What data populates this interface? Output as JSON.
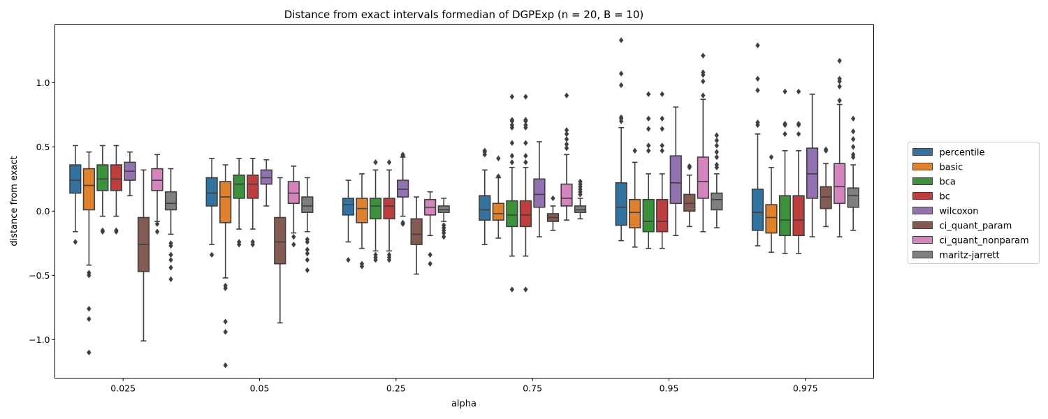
{
  "chart_data": {
    "type": "boxplot",
    "title": "Distance from exact intervals formedian of DGPExp (n = 20, B = 10)",
    "xlabel": "alpha",
    "ylabel": "distance from exact",
    "ylim": [
      -1.3,
      1.45
    ],
    "yticks": [
      -1.0,
      -0.5,
      0.0,
      0.5,
      1.0
    ],
    "ytick_labels": [
      "−1.0",
      "−0.5",
      "0.0",
      "0.5",
      "1.0"
    ],
    "categories": [
      "0.025",
      "0.05",
      "0.25",
      "0.75",
      "0.95",
      "0.975"
    ],
    "legend_position": "right",
    "series": [
      {
        "name": "percentile",
        "color": "#3274a1",
        "boxes": [
          {
            "whislo": -0.16,
            "q1": 0.14,
            "med": 0.24,
            "q3": 0.36,
            "whishi": 0.51,
            "fliers": [
              -0.24
            ]
          },
          {
            "whislo": -0.26,
            "q1": 0.04,
            "med": 0.14,
            "q3": 0.26,
            "whishi": 0.41,
            "fliers": [
              -0.34
            ]
          },
          {
            "whislo": -0.24,
            "q1": -0.03,
            "med": 0.05,
            "q3": 0.1,
            "whishi": 0.24,
            "fliers": [
              -0.38
            ]
          },
          {
            "whislo": -0.26,
            "q1": -0.07,
            "med": 0.01,
            "q3": 0.12,
            "whishi": 0.32,
            "fliers": [
              0.44,
              0.46,
              0.47
            ]
          },
          {
            "whislo": -0.23,
            "q1": -0.11,
            "med": 0.03,
            "q3": 0.22,
            "whishi": 0.65,
            "fliers": [
              0.7,
              0.72,
              0.73,
              0.98,
              1.07,
              1.33
            ]
          },
          {
            "whislo": -0.27,
            "q1": -0.15,
            "med": -0.01,
            "q3": 0.17,
            "whishi": 0.6,
            "fliers": [
              0.67,
              0.69,
              0.94,
              1.03,
              1.29
            ]
          }
        ]
      },
      {
        "name": "basic",
        "color": "#e1812c",
        "boxes": [
          {
            "whislo": -0.42,
            "q1": 0.01,
            "med": 0.2,
            "q3": 0.33,
            "whishi": 0.46,
            "fliers": [
              -0.48,
              -0.5,
              -0.76,
              -0.84,
              -1.1
            ]
          },
          {
            "whislo": -0.52,
            "q1": -0.09,
            "med": 0.11,
            "q3": 0.23,
            "whishi": 0.36,
            "fliers": [
              -0.58,
              -0.6,
              -0.86,
              -0.94,
              -1.2
            ]
          },
          {
            "whislo": -0.29,
            "q1": -0.09,
            "med": 0.02,
            "q3": 0.1,
            "whishi": 0.29,
            "fliers": [
              -0.41,
              -0.43
            ]
          },
          {
            "whislo": -0.21,
            "q1": -0.07,
            "med": -0.02,
            "q3": 0.06,
            "whishi": 0.26,
            "fliers": [
              0.27,
              0.41
            ]
          },
          {
            "whislo": -0.28,
            "q1": -0.13,
            "med": -0.01,
            "q3": 0.09,
            "whishi": 0.38,
            "fliers": [
              0.47
            ]
          },
          {
            "whislo": -0.32,
            "q1": -0.17,
            "med": -0.05,
            "q3": 0.05,
            "whishi": 0.34,
            "fliers": [
              0.42
            ]
          }
        ]
      },
      {
        "name": "bca",
        "color": "#3a923a",
        "boxes": [
          {
            "whislo": -0.04,
            "q1": 0.16,
            "med": 0.25,
            "q3": 0.36,
            "whishi": 0.51,
            "fliers": [
              -0.15,
              -0.16
            ]
          },
          {
            "whislo": -0.14,
            "q1": 0.1,
            "med": 0.21,
            "q3": 0.28,
            "whishi": 0.41,
            "fliers": [
              -0.24,
              -0.26
            ]
          },
          {
            "whislo": -0.31,
            "q1": -0.06,
            "med": 0.04,
            "q3": 0.1,
            "whishi": 0.32,
            "fliers": [
              -0.34,
              -0.36,
              -0.38,
              0.38
            ]
          },
          {
            "whislo": -0.35,
            "q1": -0.12,
            "med": -0.03,
            "q3": 0.08,
            "whishi": 0.34,
            "fliers": [
              0.38,
              0.43,
              0.53,
              0.65,
              0.67,
              0.7,
              0.71,
              0.89,
              -0.61
            ]
          },
          {
            "whislo": -0.29,
            "q1": -0.16,
            "med": -0.08,
            "q3": 0.09,
            "whishi": 0.29,
            "fliers": [
              0.47,
              0.51,
              0.64,
              0.72,
              0.91
            ]
          },
          {
            "whislo": -0.33,
            "q1": -0.19,
            "med": -0.07,
            "q3": 0.12,
            "whishi": 0.47,
            "fliers": [
              0.6,
              0.67,
              0.68,
              0.93
            ]
          }
        ]
      },
      {
        "name": "bc",
        "color": "#c03d3e",
        "boxes": [
          {
            "whislo": -0.04,
            "q1": 0.16,
            "med": 0.25,
            "q3": 0.36,
            "whishi": 0.51,
            "fliers": [
              -0.15,
              -0.16
            ]
          },
          {
            "whislo": -0.14,
            "q1": 0.1,
            "med": 0.21,
            "q3": 0.28,
            "whishi": 0.41,
            "fliers": [
              -0.24,
              -0.26
            ]
          },
          {
            "whislo": -0.31,
            "q1": -0.06,
            "med": 0.04,
            "q3": 0.1,
            "whishi": 0.32,
            "fliers": [
              -0.34,
              -0.36,
              -0.38,
              0.38
            ]
          },
          {
            "whislo": -0.35,
            "q1": -0.12,
            "med": -0.03,
            "q3": 0.08,
            "whishi": 0.34,
            "fliers": [
              0.38,
              0.43,
              0.53,
              0.65,
              0.67,
              0.7,
              0.71,
              0.89,
              -0.61
            ]
          },
          {
            "whislo": -0.29,
            "q1": -0.16,
            "med": -0.08,
            "q3": 0.09,
            "whishi": 0.29,
            "fliers": [
              0.47,
              0.51,
              0.64,
              0.72,
              0.91
            ]
          },
          {
            "whislo": -0.33,
            "q1": -0.19,
            "med": -0.07,
            "q3": 0.12,
            "whishi": 0.47,
            "fliers": [
              0.6,
              0.67,
              0.68,
              0.93
            ]
          }
        ]
      },
      {
        "name": "wilcoxon",
        "color": "#9372b2",
        "boxes": [
          {
            "whislo": 0.12,
            "q1": 0.24,
            "med": 0.31,
            "q3": 0.38,
            "whishi": 0.46,
            "fliers": []
          },
          {
            "whislo": 0.04,
            "q1": 0.21,
            "med": 0.26,
            "q3": 0.32,
            "whishi": 0.4,
            "fliers": []
          },
          {
            "whislo": -0.04,
            "q1": 0.11,
            "med": 0.17,
            "q3": 0.24,
            "whishi": 0.42,
            "fliers": [
              -0.09,
              -0.1,
              0.43,
              0.44
            ]
          },
          {
            "whislo": -0.2,
            "q1": 0.03,
            "med": 0.13,
            "q3": 0.25,
            "whishi": 0.54,
            "fliers": []
          },
          {
            "whislo": -0.19,
            "q1": 0.06,
            "med": 0.22,
            "q3": 0.43,
            "whishi": 0.81,
            "fliers": []
          },
          {
            "whislo": -0.2,
            "q1": 0.1,
            "med": 0.29,
            "q3": 0.49,
            "whishi": 0.91,
            "fliers": []
          }
        ]
      },
      {
        "name": "ci_quant_param",
        "color": "#845b53",
        "boxes": [
          {
            "whislo": -1.01,
            "q1": -0.47,
            "med": -0.26,
            "q3": -0.05,
            "whishi": 0.32,
            "fliers": []
          },
          {
            "whislo": -0.87,
            "q1": -0.41,
            "med": -0.24,
            "q3": -0.05,
            "whishi": 0.26,
            "fliers": []
          },
          {
            "whislo": -0.49,
            "q1": -0.26,
            "med": -0.18,
            "q3": -0.06,
            "whishi": 0.11,
            "fliers": []
          },
          {
            "whislo": -0.15,
            "q1": -0.08,
            "med": -0.05,
            "q3": -0.02,
            "whishi": 0.04,
            "fliers": [
              0.1
            ]
          },
          {
            "whislo": -0.12,
            "q1": 0.0,
            "med": 0.06,
            "q3": 0.13,
            "whishi": 0.28,
            "fliers": [
              0.34,
              0.35
            ]
          },
          {
            "whislo": -0.12,
            "q1": 0.02,
            "med": 0.11,
            "q3": 0.19,
            "whishi": 0.37,
            "fliers": [
              0.47,
              0.48
            ]
          }
        ]
      },
      {
        "name": "ci_quant_nonparam",
        "color": "#d684bd",
        "boxes": [
          {
            "whislo": -0.08,
            "q1": 0.16,
            "med": 0.24,
            "q3": 0.33,
            "whishi": 0.44,
            "fliers": [
              -0.1,
              -0.16
            ]
          },
          {
            "whislo": -0.17,
            "q1": 0.06,
            "med": 0.14,
            "q3": 0.23,
            "whishi": 0.35,
            "fliers": [
              -0.2,
              -0.26
            ]
          },
          {
            "whislo": -0.19,
            "q1": -0.03,
            "med": 0.03,
            "q3": 0.09,
            "whishi": 0.15,
            "fliers": [
              -0.34,
              -0.41
            ]
          },
          {
            "whislo": -0.07,
            "q1": 0.04,
            "med": 0.1,
            "q3": 0.21,
            "whishi": 0.44,
            "fliers": [
              0.49,
              0.52,
              0.56,
              0.6,
              0.63,
              0.9
            ]
          },
          {
            "whislo": -0.16,
            "q1": 0.1,
            "med": 0.23,
            "q3": 0.42,
            "whishi": 0.87,
            "fliers": [
              0.9,
              1.01,
              1.06,
              1.08,
              1.21
            ]
          },
          {
            "whislo": -0.2,
            "q1": 0.06,
            "med": 0.19,
            "q3": 0.37,
            "whishi": 0.83,
            "fliers": [
              0.86,
              0.97,
              1.01,
              1.03,
              1.17
            ]
          }
        ]
      },
      {
        "name": "maritz-jarrett",
        "color": "#7f7f7f",
        "boxes": [
          {
            "whislo": -0.18,
            "q1": 0.01,
            "med": 0.06,
            "q3": 0.15,
            "whishi": 0.33,
            "fliers": [
              -0.25,
              -0.27,
              -0.34,
              -0.38,
              -0.44,
              -0.53
            ]
          },
          {
            "whislo": -0.16,
            "q1": -0.01,
            "med": 0.04,
            "q3": 0.11,
            "whishi": 0.26,
            "fliers": [
              -0.22,
              -0.24,
              -0.3,
              -0.33,
              -0.38,
              -0.46
            ]
          },
          {
            "whislo": -0.08,
            "q1": -0.01,
            "med": 0.01,
            "q3": 0.04,
            "whishi": 0.1,
            "fliers": [
              -0.11,
              -0.13,
              -0.15,
              -0.17,
              -0.2
            ]
          },
          {
            "whislo": -0.06,
            "q1": -0.01,
            "med": 0.01,
            "q3": 0.04,
            "whishi": 0.1,
            "fliers": [
              0.13,
              0.15,
              0.17,
              0.19,
              0.21,
              0.23
            ]
          },
          {
            "whislo": -0.13,
            "q1": 0.01,
            "med": 0.09,
            "q3": 0.14,
            "whishi": 0.29,
            "fliers": [
              0.34,
              0.36,
              0.42,
              0.46,
              0.51,
              0.55,
              0.59
            ]
          },
          {
            "whislo": -0.15,
            "q1": 0.03,
            "med": 0.12,
            "q3": 0.18,
            "whishi": 0.36,
            "fliers": [
              0.42,
              0.44,
              0.5,
              0.56,
              0.62,
              0.72
            ]
          }
        ]
      }
    ]
  }
}
